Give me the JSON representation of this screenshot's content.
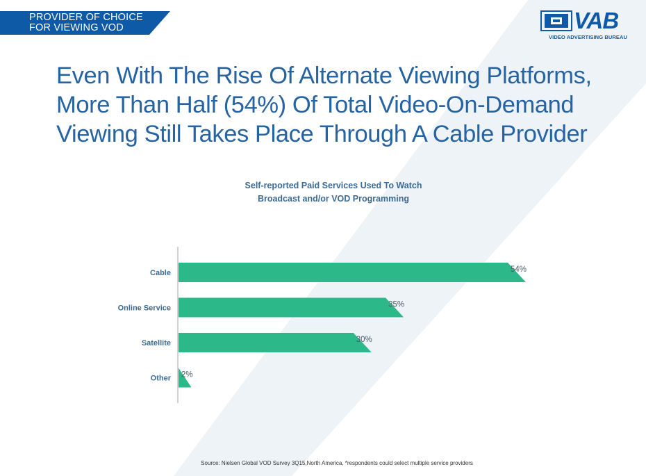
{
  "banner": {
    "line1": "PROVIDER OF CHOICE",
    "line2": "FOR VIEWING VOD"
  },
  "logo": {
    "name": "VAB",
    "subtitle": "VIDEO ADVERTISING BUREAU"
  },
  "headline": {
    "line1": "Even With The Rise Of Alternate Viewing Platforms,",
    "line2": "More Than Half (54%) Of Total Video-On-Demand",
    "line3": "Viewing Still Takes Place Through A Cable Provider"
  },
  "source": "Source: Nielsen Global VOD Survey 3Q15,North America, *respondents could select multiple service providers",
  "colors": {
    "banner": "#0f5aa6",
    "bar": "#2db889",
    "headline": "#2563a3",
    "chart_text": "#3d6a93"
  },
  "chart_data": {
    "type": "bar",
    "orientation": "horizontal",
    "title_line1": "Self-reported Paid Services Used To Watch",
    "title_line2": "Broadcast and/or VOD Programming",
    "categories": [
      "Cable",
      "Online Service",
      "Satellite",
      "Other"
    ],
    "values": [
      54,
      35,
      30,
      2
    ],
    "value_labels": [
      "54%",
      "35%",
      "30%",
      "2%"
    ],
    "unit": "%",
    "xlim": [
      0,
      54
    ],
    "grid": false,
    "legend": "none"
  }
}
